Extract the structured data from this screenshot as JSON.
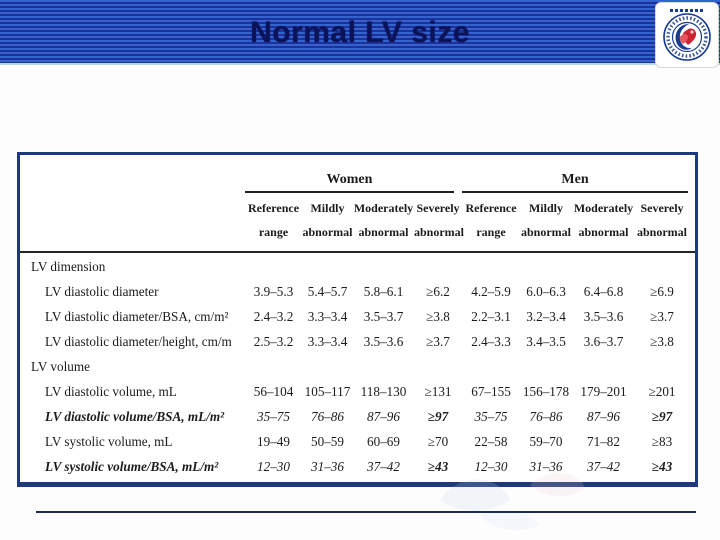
{
  "slide": {
    "title": "Normal LV size",
    "logo_name": "echocardiography-society-emblem"
  },
  "table": {
    "groups": [
      {
        "label": "Women"
      },
      {
        "label": "Men"
      }
    ],
    "column_headers": [
      "Reference range",
      "Mildly abnormal",
      "Moderately abnormal",
      "Severely abnormal"
    ],
    "rows": [
      {
        "label": "LV dimension",
        "type": "section"
      },
      {
        "label": "LV diastolic diameter",
        "type": "data",
        "women": [
          "3.9–5.3",
          "5.4–5.7",
          "5.8–6.1",
          "≥6.2"
        ],
        "men": [
          "4.2–5.9",
          "6.0–6.3",
          "6.4–6.8",
          "≥6.9"
        ]
      },
      {
        "label": "LV diastolic diameter/BSA, cm/m²",
        "type": "data",
        "women": [
          "2.4–3.2",
          "3.3–3.4",
          "3.5–3.7",
          "≥3.8"
        ],
        "men": [
          "2.2–3.1",
          "3.2–3.4",
          "3.5–3.6",
          "≥3.7"
        ]
      },
      {
        "label": "LV diastolic diameter/height, cm/m",
        "type": "data",
        "women": [
          "2.5–3.2",
          "3.3–3.4",
          "3.5–3.6",
          "≥3.7"
        ],
        "men": [
          "2.4–3.3",
          "3.4–3.5",
          "3.6–3.7",
          "≥3.8"
        ]
      },
      {
        "label": "LV volume",
        "type": "section"
      },
      {
        "label": "LV diastolic volume, mL",
        "type": "data",
        "women": [
          "56–104",
          "105–117",
          "118–130",
          "≥131"
        ],
        "men": [
          "67–155",
          "156–178",
          "179–201",
          "≥201"
        ]
      },
      {
        "label": "LV diastolic volume/BSA, mL/m²",
        "type": "data",
        "emphasis": true,
        "women": [
          "35–75",
          "76–86",
          "87–96",
          "≥97"
        ],
        "men": [
          "35–75",
          "76–86",
          "87–96",
          "≥97"
        ]
      },
      {
        "label": "LV systolic volume, mL",
        "type": "data",
        "women": [
          "19–49",
          "50–59",
          "60–69",
          "≥70"
        ],
        "men": [
          "22–58",
          "59–70",
          "71–82",
          "≥83"
        ]
      },
      {
        "label": "LV systolic volume/BSA, mL/m²",
        "type": "data",
        "emphasis": true,
        "women": [
          "12–30",
          "31–36",
          "37–42",
          "≥43"
        ],
        "men": [
          "12–30",
          "31–36",
          "37–42",
          "≥43"
        ]
      }
    ]
  },
  "colors": {
    "banner_stripe_light": "#3363cd",
    "banner_stripe_dark": "#20309b",
    "title_text": "#0c1358",
    "table_border": "#1e3a7c",
    "table_text": "#1c1c1c",
    "footer_line": "#1b2b52",
    "logo_red": "#cc2531",
    "logo_blue": "#1a3c8c"
  }
}
